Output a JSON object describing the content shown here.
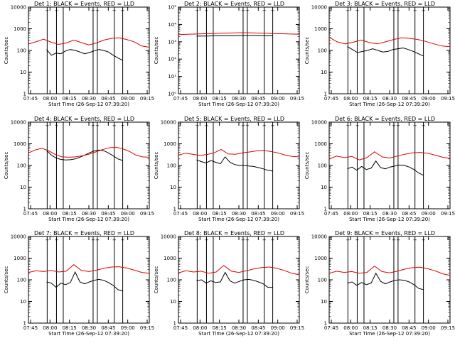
{
  "colors": {
    "events": "#000000",
    "lld": "#e00000",
    "axes": "#000000"
  },
  "chart_data": [
    {
      "type": "line",
      "title": "Det 1: BLACK = Events, RED = LLD",
      "xlabel": "Start Time (26-Sep-12 07:39:20)",
      "ylabel": "Counts/sec",
      "x_tick_labels": [
        "07:45",
        "08:00",
        "08:15",
        "08:30",
        "08:45",
        "09:00",
        "09:15"
      ],
      "y_tick_labels": [
        "1",
        "10",
        "100",
        "1000",
        "10000"
      ],
      "y_scale": "log",
      "ylim": [
        1,
        10000
      ],
      "markers": [
        "+",
        "+",
        "+",
        "+",
        "+",
        "+"
      ],
      "series": [
        {
          "values": [
            110,
            60,
            75,
            70,
            95,
            110,
            100,
            85,
            70,
            80,
            95,
            110,
            100,
            85,
            60,
            45,
            35
          ]
        },
        {
          "values": [
            200,
            250,
            330,
            240,
            190,
            220,
            300,
            230,
            180,
            220,
            300,
            360,
            380,
            320,
            250,
            160,
            140
          ]
        }
      ]
    },
    {
      "type": "line",
      "title": "Det 2: BLACK = Events, RED = LLD",
      "xlabel": "Start Time (26-Sep-12 07:39:20)",
      "ylabel": "Counts/sec",
      "x_tick_labels": [
        "07:45",
        "08:00",
        "08:15",
        "08:30",
        "08:45",
        "09:00",
        "09:15"
      ],
      "y_tick_labels": [
        "10⁰",
        "10¹",
        "10²",
        "10³",
        "10⁴",
        "10⁵"
      ],
      "y_scale": "log",
      "ylim": [
        1,
        100000
      ],
      "markers": [
        "+",
        "+",
        "+",
        "+",
        "+",
        "+"
      ],
      "series": [
        {
          "values": [
            2100,
            2150,
            2150,
            2200,
            2200,
            2200,
            2200,
            2250,
            2300,
            2300,
            2300,
            2250,
            2200,
            2200
          ]
        },
        {
          "values": [
            2600,
            2700,
            2800,
            2900,
            3000,
            3100,
            3200,
            3300,
            3300,
            3200,
            3100,
            3000,
            2900,
            2800,
            2700
          ]
        }
      ]
    },
    {
      "type": "line",
      "title": "Det 3: BLACK = Events, RED = LLD",
      "xlabel": "Start Time (26-Sep-12 07:39:20)",
      "ylabel": "Counts/sec",
      "x_tick_labels": [
        "07:45",
        "08:00",
        "08:15",
        "08:30",
        "08:45",
        "09:00",
        "09:15"
      ],
      "y_tick_labels": [
        "1",
        "10",
        "100",
        "1000",
        "10000"
      ],
      "y_scale": "log",
      "ylim": [
        1,
        10000
      ],
      "markers": [
        "+",
        "+",
        "+",
        "+",
        "+",
        "+"
      ],
      "series": [
        {
          "values": [
            150,
            110,
            80,
            90,
            100,
            120,
            100,
            85,
            90,
            110,
            120,
            130,
            110,
            90,
            70,
            55
          ]
        },
        {
          "values": [
            400,
            250,
            200,
            240,
            300,
            230,
            200,
            250,
            320,
            380,
            360,
            320,
            260,
            200,
            160,
            150
          ]
        }
      ]
    },
    {
      "type": "line",
      "title": "Det 4: BLACK = Events, RED = LLD",
      "xlabel": "Start Time (26-Sep-12 07:39:20)",
      "ylabel": "Counts/sec",
      "x_tick_labels": [
        "07:45",
        "08:00",
        "08:15",
        "08:30",
        "08:45",
        "09:00",
        "09:15"
      ],
      "y_tick_labels": [
        "1",
        "10",
        "100",
        "1000",
        "10000"
      ],
      "y_scale": "log",
      "ylim": [
        1,
        10000
      ],
      "markers": [
        "+",
        "+",
        "+",
        "+",
        "+",
        "+"
      ],
      "series": [
        {
          "values": [
            500,
            300,
            220,
            190,
            180,
            185,
            200,
            240,
            300,
            380,
            470,
            520,
            480,
            380,
            280,
            200,
            170
          ]
        },
        {
          "values": [
            380,
            520,
            620,
            480,
            320,
            250,
            240,
            250,
            280,
            330,
            420,
            540,
            650,
            700,
            600,
            450,
            300,
            250,
            240
          ]
        }
      ]
    },
    {
      "type": "line",
      "title": "Det 5: BLACK = Events, RED = LLD",
      "xlabel": "Start Time (26-Sep-12 07:39:20)",
      "ylabel": "Counts/sec",
      "x_tick_labels": [
        "07:45",
        "08:00",
        "08:15",
        "08:30",
        "08:45",
        "09:00",
        "09:15"
      ],
      "y_tick_labels": [
        "1",
        "10",
        "100",
        "1000",
        "10000"
      ],
      "y_scale": "log",
      "ylim": [
        1,
        10000
      ],
      "markers": [
        "+",
        "+",
        "+",
        "+",
        "+",
        "+"
      ],
      "series": [
        {
          "values": [
            180,
            150,
            130,
            170,
            140,
            120,
            250,
            140,
            110,
            100,
            100,
            95,
            90,
            80,
            70,
            60,
            55
          ]
        },
        {
          "values": [
            300,
            370,
            330,
            290,
            320,
            380,
            550,
            340,
            330,
            380,
            420,
            470,
            500,
            440,
            380,
            300,
            260,
            250
          ]
        }
      ]
    },
    {
      "type": "line",
      "title": "Det 6: BLACK = Events, RED = LLD",
      "xlabel": "Start Time (26-Sep-12 07:39:20)",
      "ylabel": "Counts/sec",
      "x_tick_labels": [
        "07:45",
        "08:00",
        "08:15",
        "08:30",
        "08:45",
        "09:00",
        "09:15"
      ],
      "y_tick_labels": [
        "1",
        "10",
        "100",
        "1000",
        "10000"
      ],
      "y_scale": "log",
      "ylim": [
        1,
        10000
      ],
      "markers": [
        "+",
        "+",
        "+",
        "+",
        "+",
        "+"
      ],
      "series": [
        {
          "values": [
            70,
            85,
            60,
            90,
            65,
            75,
            160,
            80,
            70,
            85,
            95,
            105,
            100,
            85,
            65,
            45,
            35
          ]
        },
        {
          "values": [
            200,
            270,
            230,
            260,
            180,
            230,
            430,
            250,
            220,
            270,
            330,
            380,
            400,
            370,
            300,
            240,
            210
          ]
        }
      ]
    },
    {
      "type": "line",
      "title": "Det 7: BLACK = Events, RED = LLD",
      "xlabel": "Start Time (26-Sep-12 07:39:20)",
      "ylabel": "Counts/sec",
      "x_tick_labels": [
        "07:45",
        "08:00",
        "08:15",
        "08:30",
        "08:45",
        "09:00",
        "09:15"
      ],
      "y_tick_labels": [
        "1",
        "10",
        "100",
        "1000",
        "10000"
      ],
      "y_scale": "log",
      "ylim": [
        1,
        10000
      ],
      "markers": [
        "+",
        "+",
        "+",
        "+",
        "+",
        "+"
      ],
      "series": [
        {
          "values": [
            80,
            70,
            45,
            70,
            60,
            75,
            230,
            80,
            65,
            80,
            95,
            105,
            95,
            75,
            55,
            35,
            30
          ]
        },
        {
          "values": [
            220,
            260,
            240,
            270,
            230,
            250,
            500,
            270,
            240,
            280,
            340,
            390,
            400,
            350,
            280,
            220,
            200
          ]
        }
      ]
    },
    {
      "type": "line",
      "title": "Det 8: BLACK = Events, RED = LLD",
      "xlabel": "Start Time (26-Sep-12 07:39:20)",
      "ylabel": "Counts/sec",
      "x_tick_labels": [
        "07:45",
        "08:00",
        "08:15",
        "08:30",
        "08:45",
        "09:00",
        "09:15"
      ],
      "y_tick_labels": [
        "1",
        "10",
        "100",
        "1000",
        "10000"
      ],
      "y_scale": "log",
      "ylim": [
        1,
        10000
      ],
      "markers": [
        "+",
        "+",
        "+",
        "+",
        "+",
        "+"
      ],
      "series": [
        {
          "values": [
            90,
            100,
            70,
            90,
            75,
            80,
            220,
            90,
            70,
            85,
            100,
            105,
            95,
            80,
            65,
            45,
            45
          ]
        },
        {
          "values": [
            210,
            260,
            230,
            250,
            200,
            230,
            460,
            250,
            220,
            260,
            320,
            370,
            390,
            340,
            270,
            200,
            170
          ]
        }
      ]
    },
    {
      "type": "line",
      "title": "Det 9: BLACK = Events, RED = LLD",
      "xlabel": "Start Time (26-Sep-12 07:39:20)",
      "ylabel": "Counts/sec",
      "x_tick_labels": [
        "07:45",
        "08:00",
        "08:15",
        "08:30",
        "08:45",
        "09:00",
        "09:15"
      ],
      "y_tick_labels": [
        "1",
        "10",
        "100",
        "1000",
        "10000"
      ],
      "y_scale": "log",
      "ylim": [
        1,
        10000
      ],
      "markers": [
        "+",
        "+",
        "+",
        "+",
        "+",
        "+"
      ],
      "series": [
        {
          "values": [
            70,
            80,
            55,
            75,
            60,
            70,
            200,
            85,
            65,
            80,
            95,
            100,
            95,
            80,
            60,
            40,
            35
          ]
        },
        {
          "values": [
            200,
            250,
            220,
            240,
            200,
            220,
            430,
            240,
            210,
            250,
            310,
            360,
            380,
            330,
            260,
            190,
            160
          ]
        }
      ]
    }
  ]
}
